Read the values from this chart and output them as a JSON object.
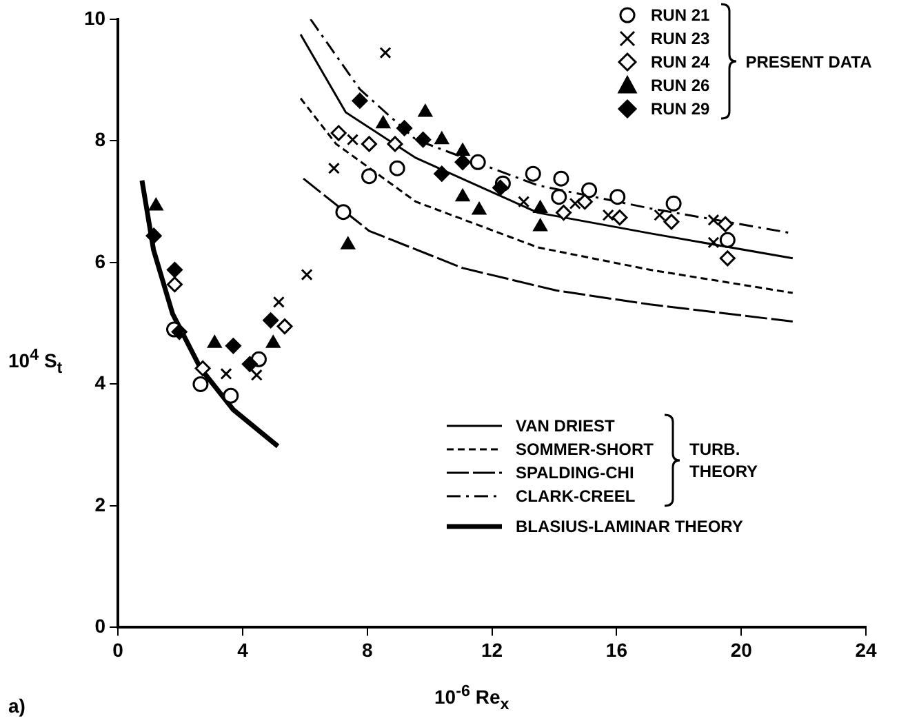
{
  "chart_data": {
    "type": "scatter",
    "xlabel": "10$^{-6}$ Re$_{x}$",
    "ylabel": "10$^{4}$ S$_{t}$",
    "xlim": [
      0,
      24
    ],
    "xticks": [
      0,
      4,
      8,
      12,
      16,
      20,
      24
    ],
    "ylim": [
      0,
      10
    ],
    "yticks": [
      0,
      2,
      4,
      6,
      8,
      10
    ],
    "grid": false,
    "legend": "right",
    "annotations": [
      "PRESENT DATA",
      "TURB. THEORY",
      "a)"
    ],
    "series": [
      {
        "name": "RUN 21",
        "marker": "circle",
        "color": "#ffffff",
        "x": [
          1.8,
          2.65,
          3.62,
          4.52,
          7.23,
          8.06,
          8.96,
          11.55,
          12.35,
          13.32,
          14.22,
          14.15,
          15.12,
          16.03,
          17.83,
          19.56
        ],
        "values": [
          4.9,
          4.0,
          3.81,
          4.41,
          6.83,
          7.42,
          7.55,
          7.65,
          7.3,
          7.46,
          7.38,
          7.08,
          7.19,
          7.08,
          6.97,
          6.37
        ]
      },
      {
        "name": "RUN 23",
        "marker": "cross",
        "color": "#000000",
        "x": [
          3.47,
          4.45,
          5.16,
          6.06,
          6.93,
          7.53,
          8.58,
          13.02,
          14.67,
          15.73,
          17.38,
          19.11,
          19.11
        ],
        "values": [
          4.17,
          4.15,
          5.35,
          5.8,
          7.55,
          8.02,
          9.45,
          7.0,
          6.97,
          6.78,
          6.78,
          6.7,
          6.33
        ]
      },
      {
        "name": "RUN 24",
        "marker": "diamond",
        "color": "#ffffff",
        "x": [
          1.82,
          2.72,
          5.35,
          7.08,
          8.06,
          8.89,
          14.3,
          14.98,
          16.1,
          17.76,
          19.49,
          19.56
        ],
        "values": [
          5.64,
          4.26,
          4.95,
          8.13,
          7.95,
          7.95,
          6.82,
          7.0,
          6.74,
          6.67,
          6.63,
          6.07
        ]
      },
      {
        "name": "RUN 26",
        "marker": "triangle",
        "color": "#000000",
        "x": [
          1.22,
          3.1,
          4.98,
          7.38,
          8.51,
          9.86,
          10.39,
          11.06,
          11.06,
          11.59,
          13.55,
          13.55
        ],
        "values": [
          6.93,
          4.67,
          4.67,
          6.29,
          8.28,
          8.47,
          8.02,
          7.83,
          7.08,
          6.86,
          6.89,
          6.59
        ]
      },
      {
        "name": "RUN 29",
        "marker": "diamond",
        "color": "#000000",
        "x": [
          1.15,
          1.82,
          1.97,
          3.7,
          4.23,
          4.9,
          7.76,
          9.19,
          9.79,
          10.39,
          11.06,
          12.27
        ],
        "values": [
          6.44,
          5.88,
          4.86,
          4.63,
          4.33,
          5.05,
          8.66,
          8.21,
          8.02,
          7.46,
          7.65,
          7.23
        ]
      },
      {
        "name": "VAN DRIEST",
        "type": "line",
        "marker": "none",
        "line_style": "solid",
        "color": "#000000",
        "x": [
          5.86,
          7.31,
          9.56,
          13.47,
          17.08,
          21.65
        ],
        "values": [
          9.75,
          8.47,
          7.72,
          6.82,
          6.48,
          6.07
        ]
      },
      {
        "name": "SOMMER-SHORT",
        "type": "line",
        "marker": "none",
        "line_style": "dashed",
        "color": "#000000",
        "x": [
          5.86,
          7.0,
          9.56,
          13.47,
          17.08,
          21.65
        ],
        "values": [
          8.7,
          7.95,
          7.0,
          6.25,
          5.88,
          5.5
        ]
      },
      {
        "name": "SPALDING-CHI",
        "type": "line",
        "marker": "none",
        "line_style": "longdash",
        "color": "#000000",
        "x": [
          5.95,
          8.06,
          11.06,
          14.07,
          17.08,
          21.65
        ],
        "values": [
          7.38,
          6.52,
          5.91,
          5.54,
          5.31,
          5.03
        ]
      },
      {
        "name": "CLARK-CREEL",
        "type": "line",
        "marker": "none",
        "line_style": "dashdot",
        "color": "#000000",
        "x": [
          6.18,
          7.76,
          9.56,
          13.47,
          17.08,
          21.65
        ],
        "values": [
          10.0,
          8.85,
          8.02,
          7.27,
          6.89,
          6.48
        ]
      },
      {
        "name": "BLASIUS-LAMINAR THEORY",
        "type": "line",
        "marker": "none",
        "line_style": "solid",
        "color": "#000000",
        "x": [
          0.77,
          1.14,
          1.75,
          2.65,
          3.7,
          5.13
        ],
        "values": [
          7.35,
          6.21,
          5.16,
          4.26,
          3.58,
          2.98
        ]
      }
    ]
  }
}
